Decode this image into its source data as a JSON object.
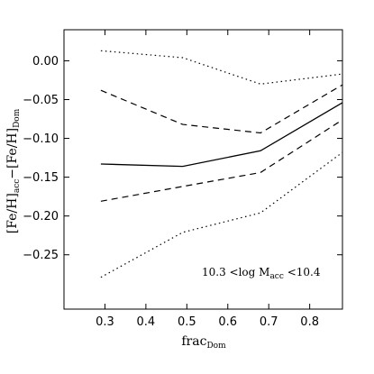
{
  "chart_data": {
    "type": "line",
    "xlabel": {
      "main": "frac",
      "sub": "Dom"
    },
    "ylabel": {
      "p1": "[Fe/H]",
      "s1": "acc",
      "p2": "−[Fe/H]",
      "s2": "Dom"
    },
    "annotation": {
      "p1": "10.3 <log M",
      "s1": "acc",
      "p2": " <10.4"
    },
    "xlim": [
      0.2,
      0.88
    ],
    "ylim": [
      -0.32,
      0.04
    ],
    "x_ticks": [
      0.3,
      0.4,
      0.5,
      0.6,
      0.7,
      0.8
    ],
    "x_tick_labels": [
      "0.3",
      "0.4",
      "0.5",
      "0.6",
      "0.7",
      "0.8"
    ],
    "y_ticks": [
      0.0,
      -0.05,
      -0.1,
      -0.15,
      -0.2,
      -0.25
    ],
    "y_tick_labels": [
      "0.00",
      "−0.05",
      "−0.10",
      "−0.15",
      "−0.20",
      "−0.25"
    ],
    "grid": false,
    "series": [
      {
        "style": "dotted",
        "x": [
          0.29,
          0.49,
          0.68,
          0.88
        ],
        "y": [
          0.013,
          0.004,
          -0.03,
          -0.017
        ]
      },
      {
        "style": "dashed",
        "x": [
          0.29,
          0.49,
          0.68,
          0.88
        ],
        "y": [
          -0.038,
          -0.082,
          -0.093,
          -0.031
        ]
      },
      {
        "style": "solid",
        "x": [
          0.29,
          0.49,
          0.68,
          0.88
        ],
        "y": [
          -0.133,
          -0.136,
          -0.116,
          -0.054
        ]
      },
      {
        "style": "dashed",
        "x": [
          0.29,
          0.49,
          0.68,
          0.88
        ],
        "y": [
          -0.181,
          -0.162,
          -0.144,
          -0.076
        ]
      },
      {
        "style": "dotted",
        "x": [
          0.29,
          0.49,
          0.68,
          0.88
        ],
        "y": [
          -0.279,
          -0.221,
          -0.196,
          -0.118
        ]
      }
    ]
  }
}
